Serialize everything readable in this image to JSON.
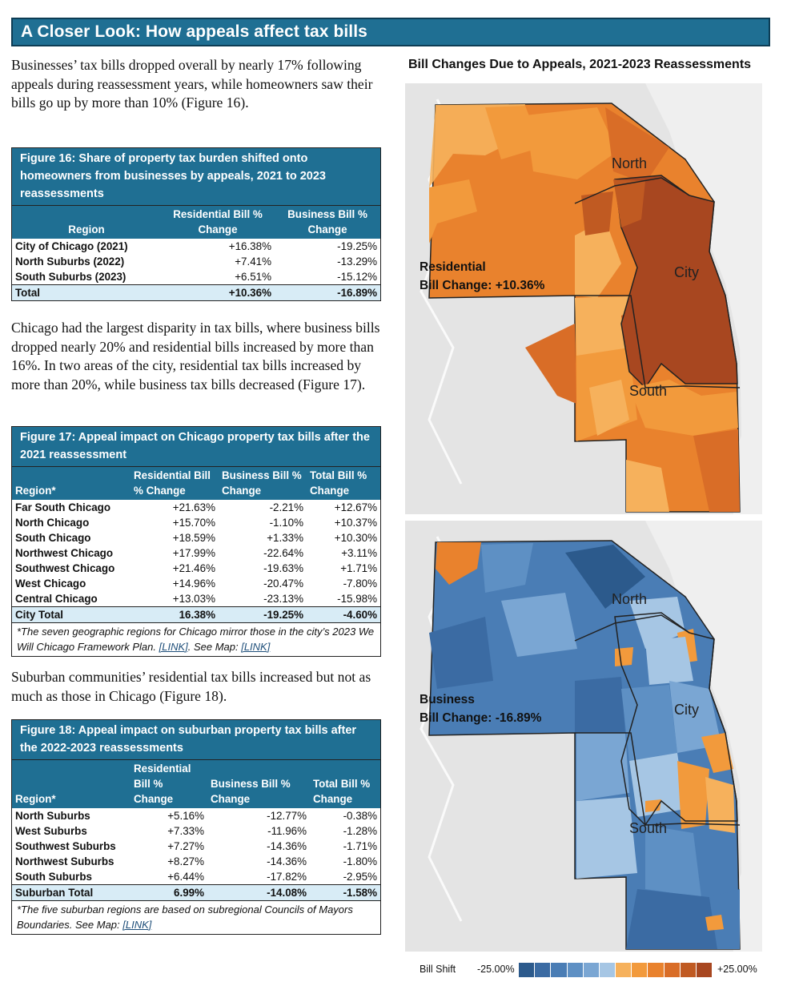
{
  "banner": "A Closer Look: How appeals affect tax bills",
  "para1": "Businesses’ tax bills dropped overall by nearly 17% following appeals during reassessment years, while homeowners saw their bills go up by more than 10% (Figure 16).",
  "fig16": {
    "title": "Figure 16: Share of property tax burden shifted onto homeowners from businesses by appeals, 2021 to 2023 reassessments",
    "headers": [
      "Region",
      "Residential Bill % Change",
      "Business Bill % Change"
    ],
    "rows": [
      [
        "City of Chicago (2021)",
        "+16.38%",
        "-19.25%"
      ],
      [
        "North Suburbs (2022)",
        "+7.41%",
        "-13.29%"
      ],
      [
        "South Suburbs (2023)",
        "+6.51%",
        "-15.12%"
      ]
    ],
    "total": [
      "Total",
      "+10.36%",
      "-16.89%"
    ]
  },
  "para2": "Chicago had the largest disparity in tax bills, where business bills dropped nearly 20% and residential bills increased by more than 16%. In two areas of the city, residential tax bills increased by more than 20%, while business tax bills decreased (Figure 17).",
  "fig17": {
    "title": "Figure 17: Appeal impact on Chicago property tax bills after the 2021 reassessment",
    "headers": [
      "Region*",
      "Residential Bill % Change",
      "Business Bill % Change",
      "Total Bill % Change"
    ],
    "rows": [
      [
        "Far South Chicago",
        "+21.63%",
        "-2.21%",
        "+12.67%"
      ],
      [
        "North Chicago",
        "+15.70%",
        "-1.10%",
        "+10.37%"
      ],
      [
        "South Chicago",
        "+18.59%",
        "+1.33%",
        "+10.30%"
      ],
      [
        "Northwest Chicago",
        "+17.99%",
        "-22.64%",
        "+3.11%"
      ],
      [
        "Southwest Chicago",
        "+21.46%",
        "-19.63%",
        "+1.71%"
      ],
      [
        "West Chicago",
        "+14.96%",
        "-20.47%",
        "-7.80%"
      ],
      [
        "Central Chicago",
        "+13.03%",
        "-23.13%",
        "-15.98%"
      ]
    ],
    "total": [
      "City Total",
      "16.38%",
      "-19.25%",
      "-4.60%"
    ],
    "note_text": "*The seven geographic regions for Chicago mirror those in the city’s 2023 We Will Chicago Framework Plan. ",
    "note_link1": "[LINK]",
    "note_mid": ". See Map: ",
    "note_link2": "[LINK]"
  },
  "para3": "Suburban communities’ residential tax bills increased but not as much as those in Chicago (Figure 18).",
  "fig18": {
    "title": "Figure 18: Appeal impact on suburban property tax bills after the 2022-2023 reassessments",
    "headers": [
      "Region*",
      "Residential Bill % Change",
      "Business Bill % Change",
      "Total Bill % Change"
    ],
    "rows": [
      [
        "North Suburbs",
        "+5.16%",
        "-12.77%",
        "-0.38%"
      ],
      [
        "West Suburbs",
        "+7.33%",
        "-11.96%",
        "-1.28%"
      ],
      [
        "Southwest Suburbs",
        "+7.27%",
        "-14.36%",
        "-1.71%"
      ],
      [
        "Northwest Suburbs",
        "+8.27%",
        "-14.36%",
        "-1.80%"
      ],
      [
        "South Suburbs",
        "+6.44%",
        "-17.82%",
        "-2.95%"
      ]
    ],
    "total": [
      "Suburban Total",
      "6.99%",
      "-14.08%",
      "-1.58%"
    ],
    "note_text": "*The five suburban regions are based on subregional Councils of Mayors Boundaries. See Map: ",
    "note_link": "[LINK]"
  },
  "maps": {
    "title": "Bill Changes Due to Appeals, 2021-2023 Reassessments",
    "residential": {
      "label_line1": "Residential",
      "label_line2": "Bill Change: +10.36%",
      "region_north": "North",
      "region_city": "City",
      "region_south": "South"
    },
    "business": {
      "label_line1": "Business",
      "label_line2": "Bill Change: -16.89%",
      "region_north": "North",
      "region_city": "City",
      "region_south": "South"
    },
    "legend": {
      "title": "Bill Shift",
      "min": "-25.00%",
      "max": "+25.00%",
      "colors": [
        "#2c5a8c",
        "#3b6ba3",
        "#4a7db5",
        "#5e90c4",
        "#7aa6d3",
        "#a6c6e4",
        "#f6b15c",
        "#f29a3c",
        "#e9822d",
        "#d96d27",
        "#c05a22",
        "#a84720"
      ]
    }
  }
}
